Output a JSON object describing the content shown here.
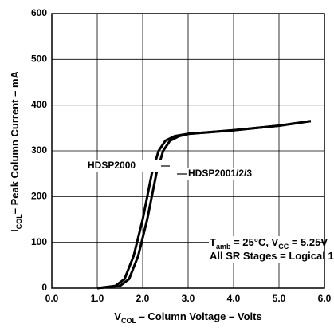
{
  "chart_data": {
    "type": "line",
    "x_label": [
      "V",
      "COL",
      " – Column Voltage – Volts"
    ],
    "y_label": [
      "I",
      "COL",
      "– Peak Column Current – mA"
    ],
    "annotations": [
      [
        "T",
        "amb",
        " = 25°C, V",
        "CC",
        " = 5.25V"
      ],
      [
        "All SR Stages = Logical 1"
      ]
    ],
    "series": [
      {
        "name": "HDSP2000",
        "color": "#000000",
        "x": [
          1.0,
          1.4,
          1.6,
          1.8,
          2.0,
          2.2,
          2.35,
          2.5,
          2.7,
          3.0,
          4.0,
          5.0,
          5.7
        ],
        "values": [
          0,
          5,
          20,
          70,
          150,
          250,
          300,
          322,
          332,
          337,
          345,
          355,
          365
        ]
      },
      {
        "name": "HDSP2001/2/3",
        "color": "#000000",
        "x": [
          1.0,
          1.5,
          1.7,
          1.9,
          2.1,
          2.3,
          2.45,
          2.6,
          2.8,
          3.0,
          4.0,
          5.0,
          5.7
        ],
        "values": [
          0,
          5,
          20,
          70,
          150,
          250,
          300,
          322,
          332,
          337,
          345,
          355,
          365
        ]
      }
    ],
    "xlim": [
      0,
      6
    ],
    "ylim": [
      0,
      600
    ],
    "xticks": [
      {
        "value": 0,
        "label": "0.0"
      },
      {
        "value": 1,
        "label": "1.0"
      },
      {
        "value": 2,
        "label": "2.0"
      },
      {
        "value": 3,
        "label": "3.0"
      },
      {
        "value": 4,
        "label": "4.0"
      },
      {
        "value": 5,
        "label": "5.0"
      },
      {
        "value": 6,
        "label": "6.0"
      }
    ],
    "yticks": [
      0,
      100,
      200,
      300,
      400,
      500,
      600
    ],
    "grid": true
  }
}
